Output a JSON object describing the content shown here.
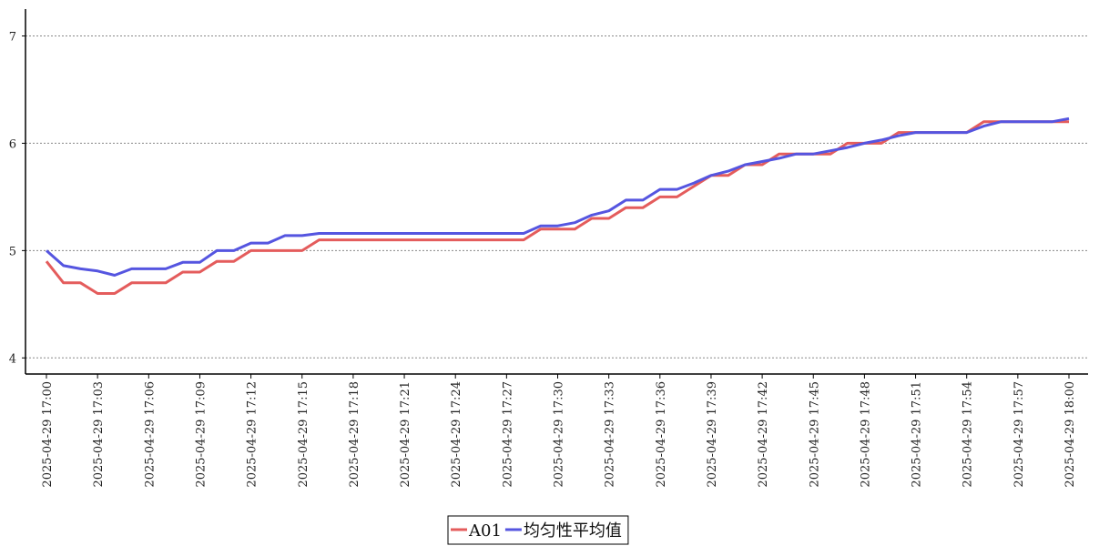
{
  "chart_data": {
    "type": "line",
    "title": "",
    "xlabel": "",
    "ylabel": "",
    "ylim": [
      3.85,
      7.25
    ],
    "yticks": [
      4,
      5,
      6,
      7
    ],
    "grid": "horizontal-dashed",
    "legend_position": "bottom-center",
    "x_tick_labels": [
      "2025-04-29 17:00",
      "2025-04-29 17:03",
      "2025-04-29 17:06",
      "2025-04-29 17:09",
      "2025-04-29 17:12",
      "2025-04-29 17:15",
      "2025-04-29 17:18",
      "2025-04-29 17:21",
      "2025-04-29 17:24",
      "2025-04-29 17:27",
      "2025-04-29 17:30",
      "2025-04-29 17:33",
      "2025-04-29 17:36",
      "2025-04-29 17:39",
      "2025-04-29 17:42",
      "2025-04-29 17:45",
      "2025-04-29 17:48",
      "2025-04-29 17:51",
      "2025-04-29 17:54",
      "2025-04-29 17:57",
      "2025-04-29 18:00"
    ],
    "x_minutes": [
      0,
      1,
      2,
      3,
      4,
      5,
      6,
      7,
      8,
      9,
      10,
      11,
      12,
      13,
      14,
      15,
      16,
      17,
      18,
      19,
      20,
      21,
      22,
      23,
      24,
      25,
      26,
      27,
      28,
      29,
      30,
      31,
      32,
      33,
      34,
      35,
      36,
      37,
      38,
      39,
      40,
      41,
      42,
      43,
      44,
      45,
      46,
      47,
      48,
      49,
      50,
      51,
      52,
      53,
      54,
      55,
      56,
      57,
      58,
      59,
      60
    ],
    "series": [
      {
        "name": "A01",
        "color": "#e45c5c",
        "values": [
          4.9,
          4.7,
          4.7,
          4.6,
          4.6,
          4.7,
          4.7,
          4.7,
          4.8,
          4.8,
          4.9,
          4.9,
          5.0,
          5.0,
          5.0,
          5.0,
          5.1,
          5.1,
          5.1,
          5.1,
          5.1,
          5.1,
          5.1,
          5.1,
          5.1,
          5.1,
          5.1,
          5.1,
          5.1,
          5.2,
          5.2,
          5.2,
          5.3,
          5.3,
          5.4,
          5.4,
          5.5,
          5.5,
          5.6,
          5.7,
          5.7,
          5.8,
          5.8,
          5.9,
          5.9,
          5.9,
          5.9,
          6.0,
          6.0,
          6.0,
          6.1,
          6.1,
          6.1,
          6.1,
          6.1,
          6.2,
          6.2,
          6.2,
          6.2,
          6.2,
          6.2
        ]
      },
      {
        "name": "均匀性平均值",
        "color": "#5555e0",
        "values": [
          5.0,
          4.86,
          4.83,
          4.81,
          4.77,
          4.83,
          4.83,
          4.83,
          4.89,
          4.89,
          5.0,
          5.0,
          5.07,
          5.07,
          5.14,
          5.14,
          5.16,
          5.16,
          5.16,
          5.16,
          5.16,
          5.16,
          5.16,
          5.16,
          5.16,
          5.16,
          5.16,
          5.16,
          5.16,
          5.23,
          5.23,
          5.26,
          5.33,
          5.37,
          5.47,
          5.47,
          5.57,
          5.57,
          5.63,
          5.7,
          5.74,
          5.8,
          5.83,
          5.86,
          5.9,
          5.9,
          5.93,
          5.96,
          6.0,
          6.03,
          6.07,
          6.1,
          6.1,
          6.1,
          6.1,
          6.16,
          6.2,
          6.2,
          6.2,
          6.2,
          6.23
        ]
      }
    ]
  }
}
